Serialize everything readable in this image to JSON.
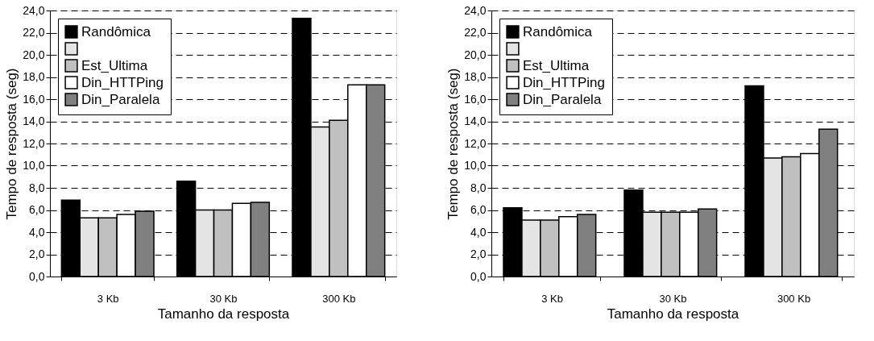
{
  "chart_data": [
    {
      "type": "bar",
      "xlabel": "Tamanho da resposta",
      "ylabel": "Tempo de resposta (seg)",
      "categories": [
        "3 Kb",
        "30 Kb",
        "300 Kb"
      ],
      "ylim": [
        0,
        24
      ],
      "yticks": [
        {
          "value": 0,
          "label": "0,0"
        },
        {
          "value": 2,
          "label": "2,0"
        },
        {
          "value": 4,
          "label": "4,0"
        },
        {
          "value": 6,
          "label": "6,0"
        },
        {
          "value": 8,
          "label": "8,0"
        },
        {
          "value": 10,
          "label": "10,0"
        },
        {
          "value": 12,
          "label": "12,0"
        },
        {
          "value": 14,
          "label": "14,0"
        },
        {
          "value": 16,
          "label": "16,0"
        },
        {
          "value": 18,
          "label": "18,0"
        },
        {
          "value": 20,
          "label": "20,0"
        },
        {
          "value": 22,
          "label": "22,0"
        },
        {
          "value": 24,
          "label": "24,0"
        }
      ],
      "grid": "y",
      "legend": "top left",
      "series": [
        {
          "name": "Randômica",
          "color": "#000000",
          "values": [
            6.9,
            8.6,
            23.3
          ]
        },
        {
          "color": "#e4e4e4",
          "values": [
            5.3,
            6.0,
            13.5
          ]
        },
        {
          "name": "Est_Ultima",
          "color": "#c0c0c0",
          "values": [
            5.3,
            6.0,
            14.1
          ]
        },
        {
          "name": "Din_HTTPing",
          "color": "#ffffff",
          "values": [
            5.6,
            6.6,
            17.3
          ]
        },
        {
          "name": "Din_Paralela",
          "color": "#808080",
          "values": [
            5.9,
            6.7,
            17.3
          ]
        }
      ]
    },
    {
      "type": "bar",
      "xlabel": "Tamanho da resposta",
      "ylabel": "Tempo de resposta (seg)",
      "categories": [
        "3 Kb",
        "30 Kb",
        "300 Kb"
      ],
      "ylim": [
        0,
        24
      ],
      "yticks": [
        {
          "value": 0,
          "label": "0,0"
        },
        {
          "value": 2,
          "label": "2,0"
        },
        {
          "value": 4,
          "label": "4,0"
        },
        {
          "value": 6,
          "label": "6,0"
        },
        {
          "value": 8,
          "label": "8,0"
        },
        {
          "value": 10,
          "label": "10,0"
        },
        {
          "value": 12,
          "label": "12,0"
        },
        {
          "value": 14,
          "label": "14,0"
        },
        {
          "value": 16,
          "label": "16,0"
        },
        {
          "value": 18,
          "label": "18,0"
        },
        {
          "value": 20,
          "label": "20,0"
        },
        {
          "value": 22,
          "label": "22,0"
        },
        {
          "value": 24,
          "label": "24,0"
        }
      ],
      "grid": "y",
      "legend": "top left",
      "series": [
        {
          "name": "Randômica",
          "color": "#000000",
          "values": [
            6.2,
            7.8,
            17.2
          ]
        },
        {
          "color": "#e4e4e4",
          "values": [
            5.1,
            5.8,
            10.7
          ]
        },
        {
          "name": "Est_Ultima",
          "color": "#c0c0c0",
          "values": [
            5.1,
            5.8,
            10.8
          ]
        },
        {
          "name": "Din_HTTPing",
          "color": "#ffffff",
          "values": [
            5.4,
            5.8,
            11.1
          ]
        },
        {
          "name": "Din_Paralela",
          "color": "#808080",
          "values": [
            5.6,
            6.1,
            13.3
          ]
        }
      ]
    }
  ]
}
